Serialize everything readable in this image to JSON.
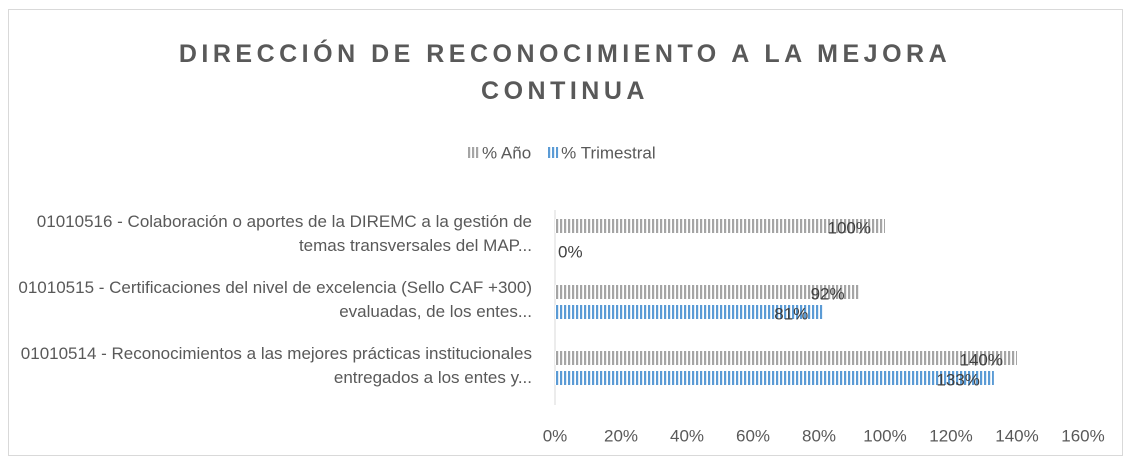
{
  "chart_data": {
    "type": "hbar",
    "title": "DIRECCIÓN DE RECONOCIMIENTO A LA MEJORA CONTINUA",
    "categories": [
      "01010516 - Colaboración o aportes de la DIREMC a la gestión de temas transversales del MAP...",
      "01010515 - Certificaciones del nivel de excelencia (Sello CAF +300) evaluadas, de los entes...",
      "01010514 - Reconocimientos a las mejores prácticas institucionales entregados a los entes y..."
    ],
    "series": [
      {
        "name": "% Año",
        "color": "#a5a5a5",
        "values": [
          100,
          92,
          140
        ],
        "value_labels": [
          "100%",
          "92%",
          "140%"
        ]
      },
      {
        "name": "% Trimestral",
        "color": "#5b9bd5",
        "values": [
          0,
          81,
          133
        ],
        "value_labels": [
          "0%",
          "81%",
          "133%"
        ]
      }
    ],
    "xlim": [
      0,
      160
    ],
    "xticks": [
      {
        "value": 0,
        "label": "0%"
      },
      {
        "value": 20,
        "label": "20%"
      },
      {
        "value": 40,
        "label": "40%"
      },
      {
        "value": 60,
        "label": "60%"
      },
      {
        "value": 80,
        "label": "80%"
      },
      {
        "value": 100,
        "label": "100%"
      },
      {
        "value": 120,
        "label": "120%"
      },
      {
        "value": 140,
        "label": "140%"
      },
      {
        "value": 160,
        "label": "160%"
      }
    ],
    "legend": "top"
  }
}
